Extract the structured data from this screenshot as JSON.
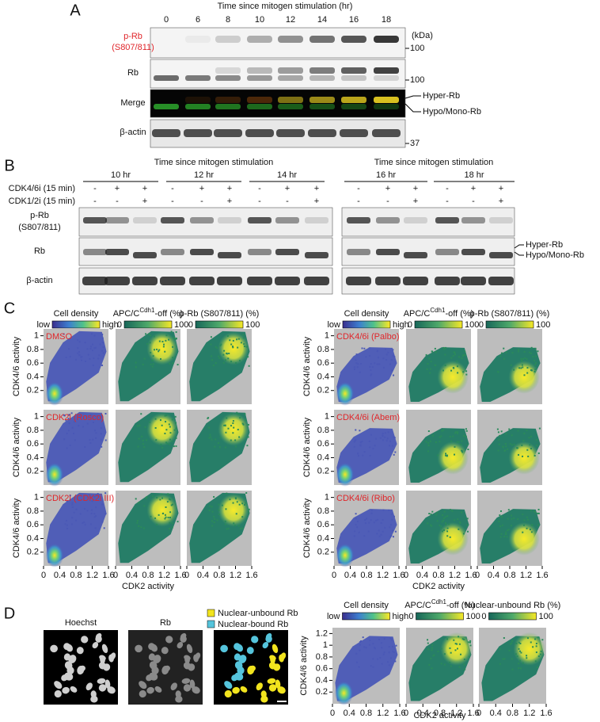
{
  "panel_a": {
    "label": "A",
    "title": "Time since mitogen stimulation (hr)",
    "timepoints": [
      0,
      6,
      8,
      10,
      12,
      14,
      16,
      18
    ],
    "row_labels": {
      "prb": "p-Rb",
      "prb_site": "(S807/811)",
      "rb": "Rb",
      "merge": "Merge",
      "actin": "β-actin"
    },
    "kda": "(kDa)",
    "markers": [
      100,
      100,
      37
    ],
    "bands": [
      "Hyper-Rb",
      "Hypo/Mono-Rb"
    ]
  },
  "panel_b": {
    "label": "B",
    "title": "Time since mitogen stimulation",
    "timepoints": [
      "10 hr",
      "12 hr",
      "14 hr",
      "16 hr",
      "18 hr"
    ],
    "treatments": [
      "CDK4/6i (15 min)",
      "CDK1/2i (15 min)"
    ],
    "signs": [
      [
        "-",
        "+",
        "+"
      ],
      [
        "-",
        "-",
        "+"
      ]
    ],
    "row_labels": {
      "prb": "p-Rb",
      "prb_site": "(S807/811)",
      "rb": "Rb",
      "actin": "β-actin"
    },
    "bands": [
      "Hyper-Rb",
      "Hypo/Mono-Rb"
    ]
  },
  "panel_c": {
    "label": "C",
    "colorbars": [
      {
        "title": "Cell density",
        "low": "low",
        "high": "high"
      },
      {
        "title": "APC/C",
        "sup": "Cdh1",
        "rest": "-off (%)",
        "low": 0,
        "high": 100
      },
      {
        "title": "p-Rb (S807/811) (%)",
        "low": 0,
        "high": 100
      }
    ],
    "conditions": [
      "DMSO",
      "CDK2i (Rosco)",
      "CDK2i (CDK2i III)",
      "CDK4/6i (Palbo)",
      "CDK4/6i (Abem)",
      "CDK4/6i (Ribo)"
    ],
    "ylabel": "CDK4/6 activity",
    "xlabel": "CDK2 activity",
    "xlim": [
      0,
      1.6
    ],
    "ylim": [
      0,
      1.1
    ],
    "xticks": [
      0,
      0.4,
      0.8,
      1.2,
      1.6
    ],
    "yticks": [
      0.2,
      0.4,
      0.6,
      0.8,
      1
    ]
  },
  "panel_d": {
    "label": "D",
    "images": [
      "Hoechst",
      "Rb"
    ],
    "legend": [
      {
        "name": "Nuclear-unbound Rb",
        "color": "#f2e41e"
      },
      {
        "name": "Nuclear-bound Rb",
        "color": "#55c4dc"
      }
    ],
    "colorbars": [
      {
        "title": "Cell density",
        "low": "low",
        "high": "high"
      },
      {
        "title": "APC/C",
        "sup": "Cdh1",
        "rest": "-off (%)",
        "low": 0,
        "high": 100
      },
      {
        "title": "Nuclear-unbound Rb (%)",
        "low": 0,
        "high": 100
      }
    ],
    "ylabel": "CDK4/6 activity",
    "xlabel": "CDK2 activity",
    "xlim": [
      0,
      1.6
    ],
    "ylim": [
      0,
      1.3
    ],
    "xticks": [
      0,
      0.4,
      0.8,
      1.2,
      1.6
    ],
    "yticks": [
      0.2,
      0.4,
      0.6,
      0.8,
      1,
      1.2
    ]
  }
}
